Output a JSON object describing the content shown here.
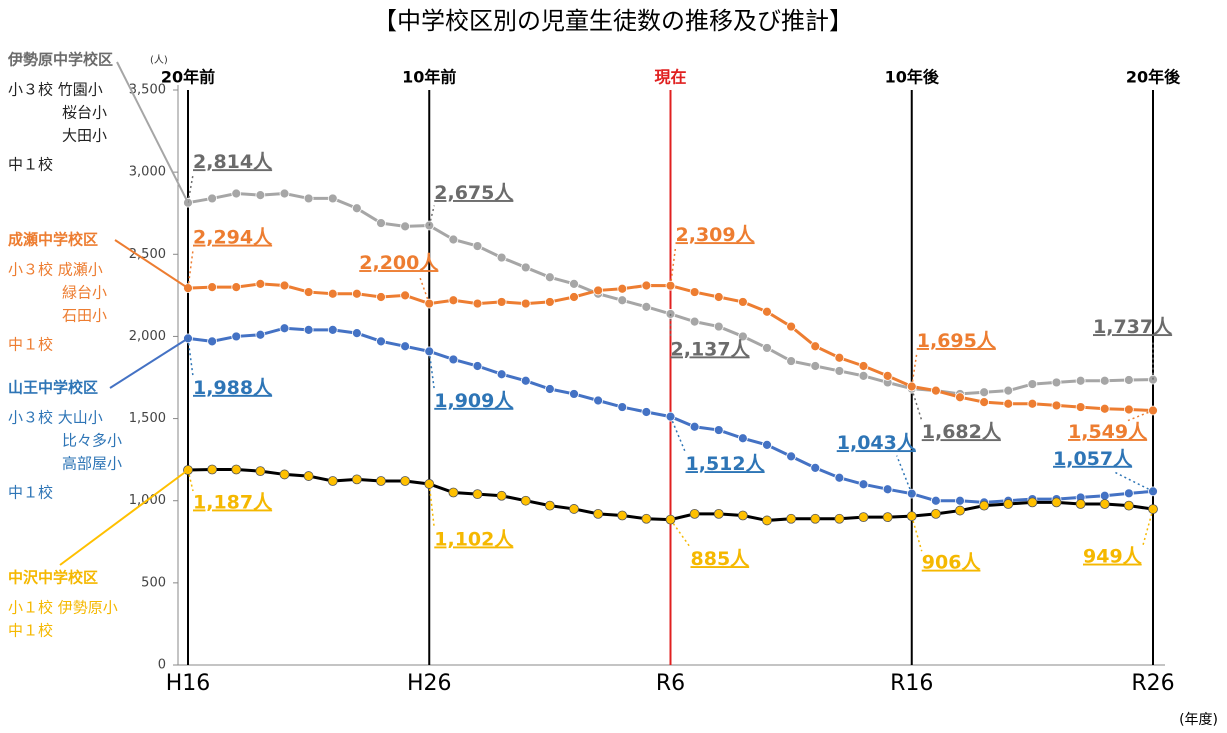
{
  "chart_data": {
    "type": "line",
    "title": "【中学校区別の児童生徒数の推移及び推計】",
    "y_unit": "(人)",
    "x_unit": "(年度)",
    "categories": [
      "H16",
      null,
      null,
      null,
      null,
      null,
      null,
      null,
      null,
      null,
      "H26",
      null,
      null,
      null,
      null,
      null,
      null,
      null,
      null,
      null,
      "R6",
      null,
      null,
      null,
      null,
      null,
      null,
      null,
      null,
      null,
      "R16",
      null,
      null,
      null,
      null,
      null,
      null,
      null,
      null,
      null,
      "R26"
    ],
    "period_lines": [
      {
        "label": "20年前",
        "color": "#000000"
      },
      {
        "label": "10年前",
        "color": "#000000"
      },
      {
        "label": "現在",
        "color": "#e02020"
      },
      {
        "label": "10年後",
        "color": "#000000"
      },
      {
        "label": "20年後",
        "color": "#000000"
      }
    ],
    "ylim": [
      0,
      3500
    ],
    "yticks": [
      0,
      {
        "value": 500,
        "label": "500"
      },
      {
        "value": 1000,
        "label": "1,000"
      },
      {
        "value": 1500,
        "label": "1,500"
      },
      {
        "value": 2000,
        "label": "2,000"
      },
      {
        "value": 2500,
        "label": "2,500"
      },
      {
        "value": 3000,
        "label": "3,000"
      },
      {
        "value": 3500,
        "label": "3,500"
      }
    ],
    "series": [
      {
        "name": "伊勢原中学校区",
        "color": "#a6a6a6",
        "marker_color": "#a6a6a6",
        "label_color": "#6b6b6b",
        "notes": [
          "小３校 竹園小",
          "桜台小",
          "大田小",
          "中１校"
        ],
        "values": [
          2814,
          2840,
          2870,
          2860,
          2870,
          2840,
          2840,
          2780,
          2690,
          2670,
          2675,
          2590,
          2550,
          2480,
          2420,
          2360,
          2320,
          2260,
          2220,
          2180,
          2137,
          2090,
          2060,
          2000,
          1930,
          1850,
          1820,
          1790,
          1760,
          1720,
          1682,
          1670,
          1650,
          1660,
          1670,
          1710,
          1720,
          1730,
          1730,
          1735,
          1737
        ],
        "value_labels": [
          "2,814人",
          null,
          null,
          null,
          null,
          null,
          null,
          null,
          null,
          null,
          "2,675人",
          null,
          null,
          null,
          null,
          null,
          null,
          null,
          null,
          null,
          "2,137人",
          null,
          null,
          null,
          null,
          null,
          null,
          null,
          null,
          null,
          "1,682人",
          null,
          null,
          null,
          null,
          null,
          null,
          null,
          null,
          null,
          "1,737人"
        ]
      },
      {
        "name": "成瀬中学校区",
        "color": "#ed7d31",
        "marker_color": "#ed7d31",
        "label_color": "#ed7d31",
        "notes": [
          "小３校 成瀬小",
          "緑台小",
          "石田小",
          "中１校"
        ],
        "values": [
          2294,
          2300,
          2300,
          2320,
          2310,
          2270,
          2260,
          2260,
          2240,
          2250,
          2200,
          2220,
          2200,
          2210,
          2200,
          2210,
          2240,
          2280,
          2290,
          2310,
          2309,
          2270,
          2240,
          2210,
          2150,
          2060,
          1940,
          1870,
          1820,
          1760,
          1695,
          1670,
          1630,
          1600,
          1590,
          1590,
          1580,
          1570,
          1560,
          1555,
          1549
        ],
        "value_labels": [
          "2,294人",
          null,
          null,
          null,
          null,
          null,
          null,
          null,
          null,
          null,
          "2,200人",
          null,
          null,
          null,
          null,
          null,
          null,
          null,
          null,
          null,
          "2,309人",
          null,
          null,
          null,
          null,
          null,
          null,
          null,
          null,
          null,
          "1,695人",
          null,
          null,
          null,
          null,
          null,
          null,
          null,
          null,
          null,
          "1,549人"
        ]
      },
      {
        "name": "山王中学校区",
        "color": "#4472c4",
        "marker_color": "#4472c4",
        "label_color": "#2e75b6",
        "notes": [
          "小３校 大山小",
          "比々多小",
          "高部屋小",
          "中１校"
        ],
        "values": [
          1988,
          1970,
          2000,
          2010,
          2050,
          2040,
          2040,
          2020,
          1970,
          1940,
          1909,
          1860,
          1820,
          1770,
          1730,
          1680,
          1650,
          1610,
          1570,
          1540,
          1512,
          1450,
          1430,
          1380,
          1340,
          1270,
          1200,
          1140,
          1100,
          1070,
          1043,
          1000,
          1000,
          990,
          1000,
          1010,
          1010,
          1020,
          1030,
          1045,
          1057
        ],
        "value_labels": [
          "1,988人",
          null,
          null,
          null,
          null,
          null,
          null,
          null,
          null,
          null,
          "1,909人",
          null,
          null,
          null,
          null,
          null,
          null,
          null,
          null,
          null,
          "1,512人",
          null,
          null,
          null,
          null,
          null,
          null,
          null,
          null,
          null,
          "1,043人",
          null,
          null,
          null,
          null,
          null,
          null,
          null,
          null,
          null,
          "1,057人"
        ]
      },
      {
        "name": "中沢中学校区",
        "color": "#000000",
        "marker_color": "#ffc000",
        "label_color": "#f5b800",
        "notes": [
          "小１校 伊勢原小",
          "中１校"
        ],
        "values": [
          1187,
          1190,
          1190,
          1180,
          1160,
          1150,
          1120,
          1130,
          1120,
          1120,
          1102,
          1050,
          1040,
          1030,
          1000,
          970,
          950,
          920,
          910,
          890,
          885,
          920,
          920,
          910,
          880,
          890,
          890,
          890,
          900,
          900,
          906,
          920,
          940,
          970,
          980,
          990,
          990,
          980,
          980,
          970,
          949
        ],
        "value_labels": [
          "1,187人",
          null,
          null,
          null,
          null,
          null,
          null,
          null,
          null,
          null,
          "1,102人",
          null,
          null,
          null,
          null,
          null,
          null,
          null,
          null,
          null,
          "885人",
          null,
          null,
          null,
          null,
          null,
          null,
          null,
          null,
          null,
          "906人",
          null,
          null,
          null,
          null,
          null,
          null,
          null,
          null,
          null,
          "949人"
        ]
      }
    ]
  }
}
